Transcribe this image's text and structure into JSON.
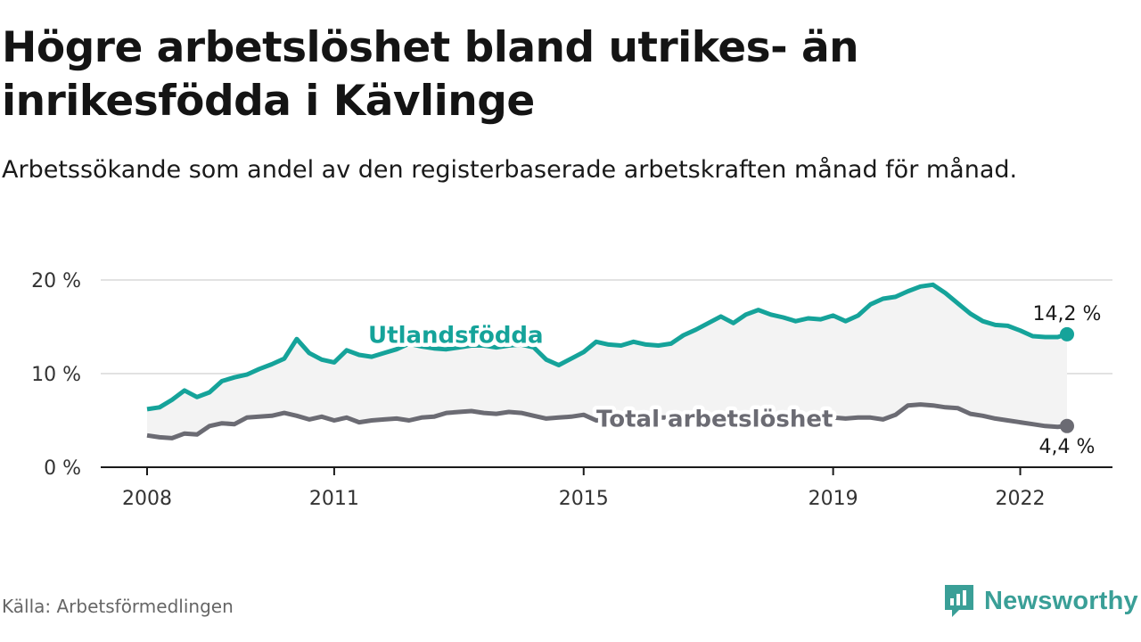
{
  "title": "Högre arbetslöshet bland utrikes- än inrikesfödda i Kävlinge",
  "subtitle": "Arbetssökande som andel av den registerbaserade arbetskraften månad för månad.",
  "source": "Källa: Arbetsförmedlingen",
  "brand": {
    "name": "Newsworthy",
    "icon": "newsworthy-logo-icon"
  },
  "colors": {
    "foreign_born": "#15a39a",
    "total": "#6b6b73",
    "band": "#f3f3f3",
    "grid": "#d9d9d9",
    "axis": "#1a1a1a",
    "brand": "#3a9f97"
  },
  "chart_data": {
    "type": "line",
    "title": "Högre arbetslöshet bland utrikes- än inrikesfödda i Kävlinge",
    "xlabel": "",
    "ylabel": "",
    "x_range": [
      2008.0,
      2022.75
    ],
    "ylim": [
      0,
      20
    ],
    "grid": true,
    "y_ticks": [
      0,
      10,
      20
    ],
    "y_tick_labels": [
      "0 %",
      "10 %",
      "20 %"
    ],
    "x_ticks": [
      2008,
      2011,
      2015,
      2019,
      2022
    ],
    "x_tick_labels": [
      "2008",
      "2011",
      "2015",
      "2019",
      "2022"
    ],
    "series": [
      {
        "name": "Utlandsfödda",
        "label": "Utlandsfödda",
        "end_label": "14,2 %",
        "x": [
          2008.0,
          2008.2,
          2008.4,
          2008.6,
          2008.8,
          2009.0,
          2009.2,
          2009.4,
          2009.6,
          2009.8,
          2010.0,
          2010.2,
          2010.4,
          2010.6,
          2010.8,
          2011.0,
          2011.2,
          2011.4,
          2011.6,
          2011.8,
          2012.0,
          2012.2,
          2012.4,
          2012.6,
          2012.8,
          2013.0,
          2013.2,
          2013.4,
          2013.6,
          2013.8,
          2014.0,
          2014.2,
          2014.4,
          2014.6,
          2014.8,
          2015.0,
          2015.2,
          2015.4,
          2015.6,
          2015.8,
          2016.0,
          2016.2,
          2016.4,
          2016.6,
          2016.8,
          2017.0,
          2017.2,
          2017.4,
          2017.6,
          2017.8,
          2018.0,
          2018.2,
          2018.4,
          2018.6,
          2018.8,
          2019.0,
          2019.2,
          2019.4,
          2019.6,
          2019.8,
          2020.0,
          2020.2,
          2020.4,
          2020.6,
          2020.8,
          2021.0,
          2021.2,
          2021.4,
          2021.6,
          2021.8,
          2022.0,
          2022.2,
          2022.4,
          2022.6,
          2022.75
        ],
        "values": [
          6.2,
          6.4,
          7.2,
          8.2,
          7.5,
          8.0,
          9.2,
          9.6,
          9.9,
          10.5,
          11.0,
          11.6,
          13.7,
          12.2,
          11.5,
          11.2,
          12.5,
          12.0,
          11.8,
          12.2,
          12.6,
          13.2,
          12.9,
          12.7,
          12.6,
          12.8,
          13.0,
          13.0,
          12.8,
          13.0,
          13.1,
          12.8,
          11.5,
          10.9,
          11.6,
          12.3,
          13.4,
          13.1,
          13.0,
          13.4,
          13.1,
          13.0,
          13.2,
          14.1,
          14.7,
          15.4,
          16.1,
          15.4,
          16.3,
          16.8,
          16.3,
          16.0,
          15.6,
          15.9,
          15.8,
          16.2,
          15.6,
          16.2,
          17.4,
          18.0,
          18.2,
          18.8,
          19.3,
          19.5,
          18.6,
          17.5,
          16.4,
          15.6,
          15.2,
          15.1,
          14.6,
          14.0,
          13.9,
          13.9,
          14.2
        ]
      },
      {
        "name": "Total arbetslöshet",
        "label": "Total arbetslöshet",
        "end_label": "4,4 %",
        "x": [
          2008.0,
          2008.2,
          2008.4,
          2008.6,
          2008.8,
          2009.0,
          2009.2,
          2009.4,
          2009.6,
          2009.8,
          2010.0,
          2010.2,
          2010.4,
          2010.6,
          2010.8,
          2011.0,
          2011.2,
          2011.4,
          2011.6,
          2011.8,
          2012.0,
          2012.2,
          2012.4,
          2012.6,
          2012.8,
          2013.0,
          2013.2,
          2013.4,
          2013.6,
          2013.8,
          2014.0,
          2014.2,
          2014.4,
          2014.6,
          2014.8,
          2015.0,
          2015.2,
          2015.4,
          2015.6,
          2015.8,
          2016.0,
          2016.2,
          2016.4,
          2016.6,
          2016.8,
          2017.0,
          2017.2,
          2017.4,
          2017.6,
          2017.8,
          2018.0,
          2018.2,
          2018.4,
          2018.6,
          2018.8,
          2019.0,
          2019.2,
          2019.4,
          2019.6,
          2019.8,
          2020.0,
          2020.2,
          2020.4,
          2020.6,
          2020.8,
          2021.0,
          2021.2,
          2021.4,
          2021.6,
          2021.8,
          2022.0,
          2022.2,
          2022.4,
          2022.6,
          2022.75
        ],
        "values": [
          3.4,
          3.2,
          3.1,
          3.6,
          3.5,
          4.4,
          4.7,
          4.6,
          5.3,
          5.4,
          5.5,
          5.8,
          5.5,
          5.1,
          5.4,
          5.0,
          5.3,
          4.8,
          5.0,
          5.1,
          5.2,
          5.0,
          5.3,
          5.4,
          5.8,
          5.9,
          6.0,
          5.8,
          5.7,
          5.9,
          5.8,
          5.5,
          5.2,
          5.3,
          5.4,
          5.6,
          5.0,
          5.1,
          5.3,
          5.2,
          5.2,
          5.3,
          5.3,
          5.4,
          5.4,
          5.4,
          5.4,
          5.4,
          5.3,
          5.3,
          5.3,
          5.3,
          5.3,
          5.3,
          5.3,
          5.3,
          5.2,
          5.3,
          5.3,
          5.1,
          5.6,
          6.6,
          6.7,
          6.6,
          6.4,
          6.3,
          5.7,
          5.5,
          5.2,
          5.0,
          4.8,
          4.6,
          4.4,
          4.3,
          4.4
        ]
      }
    ],
    "annotations": [
      "Utlandsfödda",
      "Total arbetslöshet",
      "14,2 %",
      "4,4 %"
    ]
  }
}
